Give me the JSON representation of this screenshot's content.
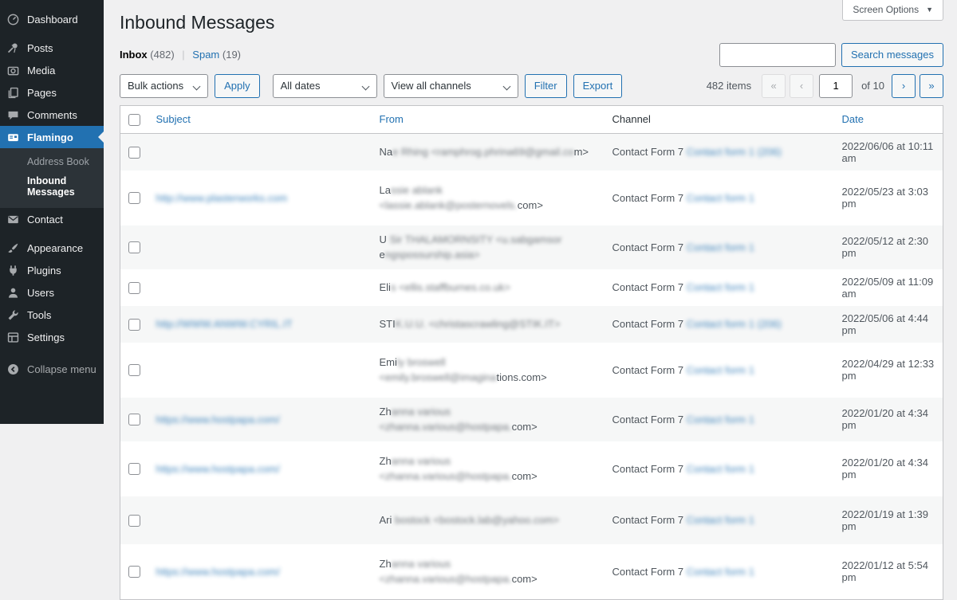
{
  "colors": {
    "accent": "#2271b1",
    "sidebar_bg": "#1d2327",
    "content_bg": "#f0f0f1",
    "stripe": "#f6f7f7"
  },
  "sidebar": {
    "items": [
      {
        "label": "Dashboard",
        "icon": "dashboard-icon"
      },
      {
        "label": "Posts",
        "icon": "pushpin-icon",
        "gap_before": true
      },
      {
        "label": "Media",
        "icon": "media-icon"
      },
      {
        "label": "Pages",
        "icon": "pages-icon"
      },
      {
        "label": "Comments",
        "icon": "comment-icon"
      },
      {
        "label": "Flamingo",
        "icon": "flamingo-icon",
        "active": true,
        "submenu": [
          {
            "label": "Address Book"
          },
          {
            "label": "Inbound Messages",
            "current": true
          }
        ]
      },
      {
        "label": "Contact",
        "icon": "envelope-icon"
      },
      {
        "label": "Appearance",
        "icon": "appearance-icon",
        "gap_before": true
      },
      {
        "label": "Plugins",
        "icon": "plugin-icon"
      },
      {
        "label": "Users",
        "icon": "user-icon"
      },
      {
        "label": "Tools",
        "icon": "tools-icon"
      },
      {
        "label": "Settings",
        "icon": "settings-icon"
      },
      {
        "label": "Collapse menu",
        "icon": "collapse-icon",
        "collapse": true,
        "gap_before": true,
        "big_gap": true
      }
    ]
  },
  "header": {
    "title": "Inbound Messages",
    "screen_options_label": "Screen Options",
    "screen_options_chevron": "▼"
  },
  "filters": {
    "inbox_label": "Inbox",
    "inbox_count": "(482)",
    "separator": "|",
    "spam_label": "Spam",
    "spam_count": "(19)"
  },
  "search": {
    "value": "",
    "button_label": "Search messages"
  },
  "toolbar": {
    "bulk_actions_label": "Bulk actions",
    "apply_label": "Apply",
    "all_dates_label": "All dates",
    "view_all_channels_label": "View all channels",
    "filter_label": "Filter",
    "export_label": "Export"
  },
  "pagination": {
    "items_count": "482 items",
    "first_label": "«",
    "prev_label": "‹",
    "page_value": "1",
    "of_label": "of 10",
    "next_label": "›",
    "last_label": "»"
  },
  "table": {
    "columns": [
      {
        "label": "Subject",
        "sortable": true
      },
      {
        "label": "From",
        "sortable": true
      },
      {
        "label": "Channel",
        "sortable": false
      },
      {
        "label": "Date",
        "sortable": true
      }
    ],
    "rows": [
      {
        "subject": "",
        "from_pre": "Na",
        "from_blur": "e Rhing <ramphrog.phrina69@gmail.co",
        "from_post": "m>",
        "channel_link": "Contact Form 7",
        "channel_blur": "Contact form 1 (206)",
        "date": "2022/06/06 at 10:11 am",
        "tall": false
      },
      {
        "subject": "http://www.plasterworks.com",
        "from_pre": "La",
        "from_blur": "ssie ablank <lassie.ablank@posternovels.",
        "from_post": "com>",
        "channel_link": "Contact Form 7",
        "channel_blur": "Contact form 1",
        "date": "2022/05/23 at 3:03 pm",
        "tall": true
      },
      {
        "subject": "",
        "from_pre": "U",
        "from_blur": " Sir THALAMORNSITY <u.sabgamsor",
        "from_post": "",
        "from2_pre": "e",
        "from2_blur": "ngspossurship.asia>",
        "channel_link": "Contact Form 7",
        "channel_blur": "Contact form 1",
        "date": "2022/05/12 at 2:30 pm",
        "tall": false
      },
      {
        "subject": "",
        "from_pre": "Eli",
        "from_blur": "s <ellis.staffburnes.co.uk>",
        "from_post": "",
        "channel_link": "Contact Form 7",
        "channel_blur": "Contact form 1",
        "date": "2022/05/09 at 11:09 am",
        "tall": false
      },
      {
        "subject": "http://WWW.ANWW.CYRIL.IT",
        "from_pre": "STI",
        "from_blur": "K.U.U. <christascrawling@STIK.IT>",
        "from_post": "",
        "channel_link": "Contact Form 7",
        "channel_blur": "Contact form 1 (206)",
        "date": "2022/05/06 at 4:44 pm",
        "tall": false
      },
      {
        "subject": "",
        "from_pre": "Emi",
        "from_blur": "ly broswell <emily.broswell@imagina",
        "from_post": "tions.com>",
        "channel_link": "Contact Form 7",
        "channel_blur": "Contact form 1",
        "date": "2022/04/29 at 12:33 pm",
        "tall": true
      },
      {
        "subject": "https://www.hostpapa.com/",
        "from_pre": "Zh",
        "from_blur": "anna various <zhanna.various@hostpapa.",
        "from_post": "com>",
        "channel_link": "Contact Form 7",
        "channel_blur": "Contact form 1",
        "date": "2022/01/20 at 4:34 pm",
        "tall": false
      },
      {
        "subject": "https://www.hostpapa.com/",
        "from_pre": "Zh",
        "from_blur": "anna various <zhanna.various@hostpapa.",
        "from_post": "com>",
        "channel_link": "Contact Form 7",
        "channel_blur": "Contact form 1",
        "date": "2022/01/20 at 4:34 pm",
        "tall": true
      },
      {
        "subject": "",
        "from_pre": "Ari",
        "from_blur": " bostock <bostock.lab@yahoo.com>",
        "from_post": "",
        "channel_link": "Contact Form 7",
        "channel_blur": "Contact form 1",
        "date": "2022/01/19 at 1:39 pm",
        "tall": true
      },
      {
        "subject": "https://www.hostpapa.com/",
        "from_pre": "Zh",
        "from_blur": "anna various <zhanna.various@hostpapa.",
        "from_post": "com>",
        "channel_link": "Contact Form 7",
        "channel_blur": "Contact form 1",
        "date": "2022/01/12 at 5:54 pm",
        "tall": true
      }
    ]
  }
}
